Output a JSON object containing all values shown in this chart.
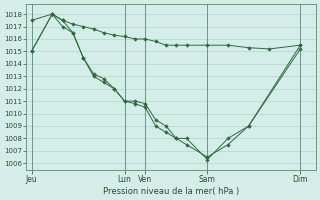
{
  "title": "Pression niveau de la mer( hPa )",
  "background_color": "#d4ede8",
  "grid_color": "#a8cfc7",
  "line_color": "#2d6b3c",
  "marker_color": "#2d6b3c",
  "ylim": [
    1005.5,
    1018.8
  ],
  "yticks": [
    1006,
    1007,
    1008,
    1009,
    1010,
    1011,
    1012,
    1013,
    1014,
    1015,
    1016,
    1017,
    1018
  ],
  "xtick_labels": [
    "Jeu",
    "Lun",
    "Ven",
    "Sam",
    "Dim"
  ],
  "xtick_positions": [
    0,
    9,
    11,
    17,
    26
  ],
  "xlim": [
    -0.5,
    27.5
  ],
  "series1_x": [
    0,
    2,
    3,
    4,
    5,
    6,
    7,
    8,
    9,
    10,
    11,
    12,
    13,
    14,
    15,
    17,
    19,
    21,
    23,
    26
  ],
  "series1_y": [
    1017.5,
    1018.0,
    1017.5,
    1017.2,
    1017.0,
    1016.8,
    1016.5,
    1016.3,
    1016.2,
    1016.0,
    1016.0,
    1015.8,
    1015.5,
    1015.5,
    1015.5,
    1015.5,
    1015.5,
    1015.3,
    1015.2,
    1015.5
  ],
  "series2_x": [
    0,
    2,
    3,
    4,
    5,
    6,
    7,
    8,
    9,
    10,
    11,
    12,
    13,
    14,
    15,
    17,
    19,
    21,
    26
  ],
  "series2_y": [
    1015.0,
    1018.0,
    1017.5,
    1016.5,
    1014.5,
    1013.2,
    1012.8,
    1012.0,
    1011.0,
    1011.0,
    1010.8,
    1009.5,
    1009.0,
    1008.0,
    1008.0,
    1006.3,
    1008.0,
    1009.0,
    1015.5
  ],
  "series3_x": [
    0,
    2,
    3,
    4,
    5,
    6,
    7,
    8,
    9,
    10,
    11,
    12,
    13,
    14,
    15,
    17,
    19,
    21,
    26
  ],
  "series3_y": [
    1015.0,
    1018.0,
    1017.0,
    1016.5,
    1014.5,
    1013.0,
    1012.5,
    1012.0,
    1011.0,
    1010.8,
    1010.5,
    1009.0,
    1008.5,
    1008.0,
    1007.5,
    1006.5,
    1007.5,
    1009.0,
    1015.2
  ],
  "vline_positions": [
    0,
    9,
    11,
    17,
    26
  ],
  "vline_color": "#5a8a7a"
}
